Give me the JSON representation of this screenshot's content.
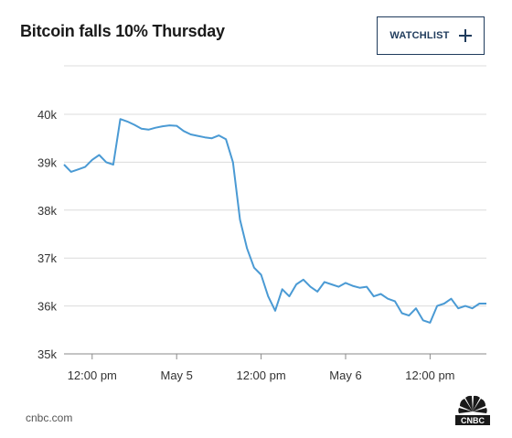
{
  "header": {
    "title": "Bitcoin falls 10% Thursday",
    "watchlist_label": "WATCHLIST"
  },
  "footer": {
    "source": "cnbc.com",
    "logo_text": "CNBC"
  },
  "colors": {
    "line": "#4a9ad4",
    "grid": "#dcdcdc",
    "button_border": "#1f3b5c"
  },
  "chart_data": {
    "type": "line",
    "title": "Bitcoin falls 10% Thursday",
    "xlabel": "",
    "ylabel": "",
    "ylim": [
      35000,
      40500
    ],
    "yticks": [
      35000,
      36000,
      37000,
      38000,
      39000,
      40000
    ],
    "ytick_labels": [
      "35k",
      "36k",
      "37k",
      "38k",
      "39k",
      "40k"
    ],
    "xlim": [
      "May 4 08:00",
      "May 6 20:00"
    ],
    "xticks": [
      "May 4 12:00",
      "May 5 00:00",
      "May 5 12:00",
      "May 6 00:00",
      "May 6 12:00"
    ],
    "xtick_labels": [
      "12:00 pm",
      "May 5",
      "12:00 pm",
      "May 6",
      "12:00 pm"
    ],
    "grid": true,
    "series": [
      {
        "x": [
          "May 4 08:00",
          "May 4 09:00",
          "May 4 10:00",
          "May 4 11:00",
          "May 4 12:00",
          "May 4 13:00",
          "May 4 14:00",
          "May 4 15:00",
          "May 4 16:00",
          "May 4 17:00",
          "May 4 18:00",
          "May 4 19:00",
          "May 4 20:00",
          "May 4 21:00",
          "May 4 22:00",
          "May 4 23:00",
          "May 5 00:00",
          "May 5 01:00",
          "May 5 02:00",
          "May 5 03:00",
          "May 5 04:00",
          "May 5 05:00",
          "May 5 06:00",
          "May 5 07:00",
          "May 5 08:00",
          "May 5 09:00",
          "May 5 10:00",
          "May 5 11:00",
          "May 5 12:00",
          "May 5 13:00",
          "May 5 14:00",
          "May 5 15:00",
          "May 5 16:00",
          "May 5 17:00",
          "May 5 18:00",
          "May 5 19:00",
          "May 5 20:00",
          "May 5 21:00",
          "May 5 22:00",
          "May 5 23:00",
          "May 6 00:00",
          "May 6 01:00",
          "May 6 02:00",
          "May 6 03:00",
          "May 6 04:00",
          "May 6 05:00",
          "May 6 06:00",
          "May 6 07:00",
          "May 6 08:00",
          "May 6 09:00",
          "May 6 10:00",
          "May 6 11:00",
          "May 6 12:00",
          "May 6 13:00",
          "May 6 14:00",
          "May 6 15:00",
          "May 6 16:00",
          "May 6 17:00",
          "May 6 18:00",
          "May 6 19:00",
          "May 6 20:00"
        ],
        "values": [
          38950,
          38800,
          38850,
          38900,
          39050,
          39150,
          39000,
          38950,
          39900,
          39850,
          39780,
          39700,
          39680,
          39720,
          39750,
          39770,
          39760,
          39650,
          39580,
          39550,
          39520,
          39500,
          39560,
          39480,
          39000,
          37800,
          37200,
          36800,
          36650,
          36200,
          35900,
          36350,
          36200,
          36450,
          36550,
          36400,
          36300,
          36500,
          36450,
          36400,
          36480,
          36420,
          36380,
          36400,
          36200,
          36250,
          36150,
          36100,
          35850,
          35800,
          35950,
          35700,
          35650,
          36000,
          36050,
          36150,
          35950,
          36000,
          35950,
          36050,
          36050
        ]
      }
    ]
  }
}
